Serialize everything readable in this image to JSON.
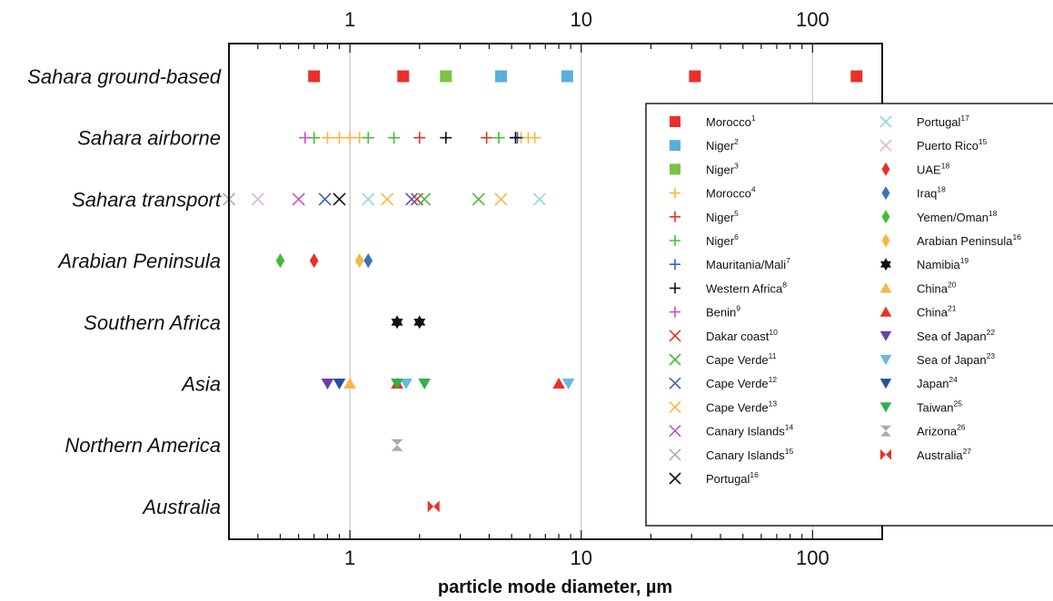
{
  "chart_data": {
    "type": "scatter",
    "x_scale": "log",
    "xlim": [
      0.3,
      200
    ],
    "xticks": [
      1,
      10,
      100
    ],
    "xtick_labels": [
      "1",
      "10",
      "100"
    ],
    "xlabel": "particle mode diameter, µm",
    "ylabel": "",
    "grid": "vertical lines at 1, 10, 100",
    "legend_position": "right, inside plot",
    "categories": [
      "Sahara ground-based",
      "Sahara airborne",
      "Sahara transport",
      "Arabian Peninsula",
      "Southern Africa",
      "Asia",
      "Northern America",
      "Australia"
    ],
    "series": [
      {
        "name": "Morocco",
        "ref": "1",
        "marker": "square",
        "color": "#e8312a",
        "category": "Sahara ground-based",
        "x": [
          0.7,
          1.7,
          31,
          155
        ]
      },
      {
        "name": "Niger",
        "ref": "2",
        "marker": "square",
        "color": "#5aaedc",
        "category": "Sahara ground-based",
        "x": [
          4.5,
          8.7
        ]
      },
      {
        "name": "Niger",
        "ref": "3",
        "marker": "square",
        "color": "#7dc242",
        "category": "Sahara ground-based",
        "x": [
          2.6
        ]
      },
      {
        "name": "Morocco",
        "ref": "4",
        "marker": "plus",
        "color": "#f9b642",
        "category": "Sahara airborne",
        "x": [
          0.8,
          0.9,
          1.0,
          1.1,
          5.5,
          5.9,
          6.3
        ]
      },
      {
        "name": "Niger",
        "ref": "5",
        "marker": "plus",
        "color": "#e8312a",
        "category": "Sahara airborne",
        "x": [
          2.0,
          3.9
        ]
      },
      {
        "name": "Niger",
        "ref": "6",
        "marker": "plus",
        "color": "#49b93a",
        "category": "Sahara airborne",
        "x": [
          0.7,
          1.2,
          1.55,
          4.4
        ]
      },
      {
        "name": "Mauritania/Mali",
        "ref": "7",
        "marker": "plus",
        "color": "#3b63b4",
        "category": "Sahara airborne",
        "x": [
          5.3
        ]
      },
      {
        "name": "Western Africa",
        "ref": "8",
        "marker": "plus",
        "color": "#111111",
        "category": "Sahara airborne",
        "x": [
          2.6,
          5.2
        ]
      },
      {
        "name": "Benin",
        "ref": "9",
        "marker": "plus",
        "color": "#c452c6",
        "category": "Sahara airborne",
        "x": [
          0.64
        ]
      },
      {
        "name": "Dakar coast",
        "ref": "10",
        "marker": "x",
        "color": "#e8312a",
        "category": "Sahara transport",
        "x": [
          1.95
        ]
      },
      {
        "name": "Cape Verde",
        "ref": "11",
        "marker": "x",
        "color": "#49b93a",
        "category": "Sahara transport",
        "x": [
          2.1,
          3.6
        ]
      },
      {
        "name": "Cape Verde",
        "ref": "12",
        "marker": "x",
        "color": "#3b63b4",
        "category": "Sahara transport",
        "x": [
          0.78,
          1.85
        ]
      },
      {
        "name": "Cape Verde",
        "ref": "13",
        "marker": "x",
        "color": "#f9b642",
        "category": "Sahara transport",
        "x": [
          1.45,
          4.5
        ]
      },
      {
        "name": "Canary Islands",
        "ref": "14",
        "marker": "x",
        "color": "#c452c6",
        "category": "Sahara transport",
        "x": [
          0.6
        ]
      },
      {
        "name": "Canary Islands",
        "ref": "15",
        "marker": "x",
        "color": "#aaaaaa",
        "category": "Sahara transport",
        "x": [
          0.3
        ]
      },
      {
        "name": "Portugal",
        "ref": "16",
        "marker": "x",
        "color": "#111111",
        "category": "Sahara transport",
        "x": [
          0.9
        ]
      },
      {
        "name": "Portugal",
        "ref": "17",
        "marker": "x",
        "color": "#8fd9d9",
        "category": "Sahara transport",
        "x": [
          1.2,
          6.6
        ]
      },
      {
        "name": "Puerto Rico",
        "ref": "15",
        "marker": "x",
        "color": "#d9b3e3",
        "category": "Sahara transport",
        "x": [
          0.4
        ]
      },
      {
        "name": "UAE",
        "ref": "18",
        "marker": "diamond",
        "color": "#e8312a",
        "category": "Arabian Peninsula",
        "x": [
          0.7
        ]
      },
      {
        "name": "Iraq",
        "ref": "18",
        "marker": "diamond",
        "color": "#3b73b9",
        "category": "Arabian Peninsula",
        "x": [
          1.2
        ]
      },
      {
        "name": "Yemen/Oman",
        "ref": "18",
        "marker": "diamond",
        "color": "#49b93a",
        "category": "Arabian Peninsula",
        "x": [
          0.5
        ]
      },
      {
        "name": "Arabian Peninsula",
        "ref": "16",
        "marker": "diamond",
        "color": "#f9b642",
        "category": "Arabian Peninsula",
        "x": [
          1.1
        ]
      },
      {
        "name": "Namibia",
        "ref": "19",
        "marker": "hexagram",
        "color": "#111111",
        "category": "Southern Africa",
        "x": [
          1.6,
          2.0
        ]
      },
      {
        "name": "China",
        "ref": "20",
        "marker": "triangle-up",
        "color": "#f9b642",
        "category": "Asia",
        "x": [
          1.0
        ]
      },
      {
        "name": "China",
        "ref": "21",
        "marker": "triangle-up",
        "color": "#e8312a",
        "category": "Asia",
        "x": [
          1.6,
          8.0
        ]
      },
      {
        "name": "Sea of Japan",
        "ref": "22",
        "marker": "triangle-down",
        "color": "#6a3fb0",
        "category": "Asia",
        "x": [
          0.8
        ]
      },
      {
        "name": "Sea of Japan",
        "ref": "23",
        "marker": "triangle-down",
        "color": "#6ab8e0",
        "category": "Asia",
        "x": [
          1.75,
          8.8
        ]
      },
      {
        "name": "Japan",
        "ref": "24",
        "marker": "triangle-down",
        "color": "#2b4ea6",
        "category": "Asia",
        "x": [
          0.9
        ]
      },
      {
        "name": "Taiwan",
        "ref": "25",
        "marker": "triangle-down",
        "color": "#2eb24a",
        "category": "Asia",
        "x": [
          1.6,
          2.1
        ]
      },
      {
        "name": "Arizona",
        "ref": "26",
        "marker": "hourglass",
        "color": "#aaaaaa",
        "category": "Northern America",
        "x": [
          1.6
        ]
      },
      {
        "name": "Australia",
        "ref": "27",
        "marker": "bowtie",
        "color": "#e8312a",
        "category": "Australia",
        "x": [
          2.3
        ]
      }
    ]
  }
}
